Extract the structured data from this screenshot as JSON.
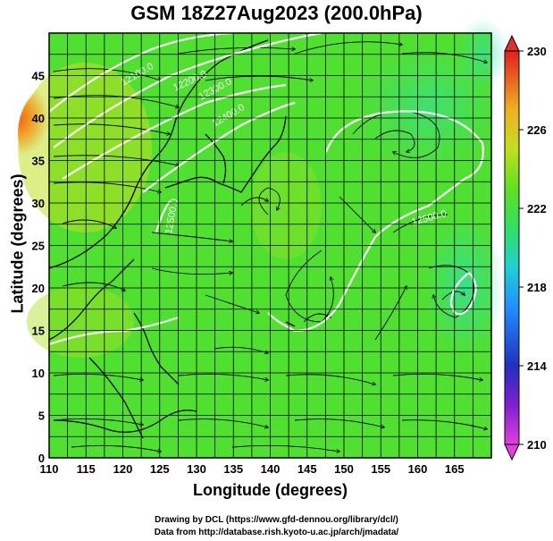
{
  "title": "GSM 18Z27Aug2023 (200.0hPa)",
  "xlabel": "Longitude (degrees)",
  "ylabel": "Latitude  (degrees)",
  "credit_line1": "Drawing by DCL (https://www.gfd-dennou.org/library/dcl/)",
  "credit_line2": "Data from http://database.rish.kyoto-u.ac.jp/arch/jmadata/",
  "chart_data": {
    "type": "heatmap",
    "field": "temperature shading with geopotential height contours and wind streamlines",
    "xlim": [
      110,
      170
    ],
    "ylim": [
      0,
      50
    ],
    "x_ticks": [
      110,
      115,
      120,
      125,
      130,
      135,
      140,
      145,
      150,
      155,
      160,
      165
    ],
    "y_ticks": [
      0,
      5,
      10,
      15,
      20,
      25,
      30,
      35,
      40,
      45
    ],
    "grid": true,
    "colorbar": {
      "min": 210,
      "max": 230,
      "ticks": [
        210,
        214,
        218,
        222,
        226,
        230
      ],
      "colors": [
        "#e040e0",
        "#2020c0",
        "#2090ff",
        "#20d0d0",
        "#30e060",
        "#60e020",
        "#c0e020",
        "#f0b020",
        "#f06020",
        "#e02020"
      ]
    },
    "contours": [
      {
        "label": "12100.0",
        "lon": 113,
        "lat": 47
      },
      {
        "label": "12200.0",
        "lon": 123,
        "lat": 46
      },
      {
        "label": "12300.0",
        "lon": 127,
        "lat": 44
      },
      {
        "label": "12400.0",
        "lon": 132,
        "lat": 41
      },
      {
        "label": "12500.0",
        "lon": 162,
        "lat": 30
      },
      {
        "label": "12500.0",
        "lon": 123,
        "lat": 31
      }
    ]
  }
}
